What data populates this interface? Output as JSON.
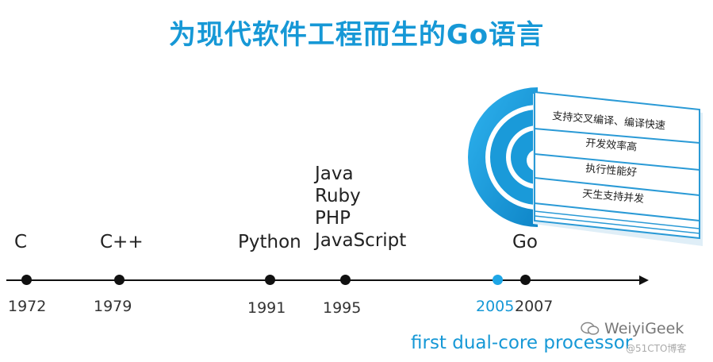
{
  "title": "为现代软件工程而生的Go语言",
  "languages": [
    {
      "label": "C"
    },
    {
      "label": "C++"
    },
    {
      "label": "Python"
    },
    {
      "lines": [
        "Java",
        "Ruby",
        "PHP",
        "JavaScript"
      ]
    },
    {
      "label": "Go"
    }
  ],
  "years": [
    "1972",
    "1979",
    "1991",
    "1995",
    "2005",
    "2007"
  ],
  "highlight_color": "#1698d6",
  "features": [
    "支持交叉编译、编译快速",
    "开发效率高",
    "执行性能好",
    "天生支持并发"
  ],
  "note": "first dual-core processor",
  "watermark": {
    "icon": "wechat-icon",
    "name": "WeiyiGeek",
    "sub": "@51CTO博客"
  }
}
